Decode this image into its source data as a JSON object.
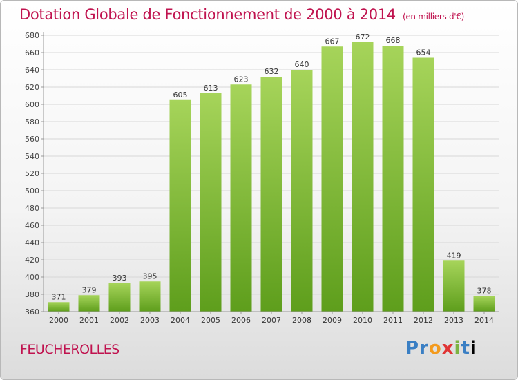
{
  "header": {
    "title": "Dotation Globale de Fonctionnement de 2000 à 2014",
    "unit": "(en milliers d'€)"
  },
  "footer": {
    "commune": "FEUCHEROLLES",
    "logo": "Proxiti"
  },
  "colors": {
    "title": "#c0134f",
    "bar_top": "#a6d45a",
    "bar_bottom": "#5e9e1c"
  },
  "chart_data": {
    "type": "bar",
    "title": "Dotation Globale de Fonctionnement de 2000 à 2014",
    "subtitle": "(en milliers d'€)",
    "xlabel": "",
    "ylabel": "",
    "categories": [
      "2000",
      "2001",
      "2002",
      "2003",
      "2004",
      "2005",
      "2006",
      "2007",
      "2008",
      "2009",
      "2010",
      "2011",
      "2012",
      "2013",
      "2014"
    ],
    "values": [
      371,
      379,
      393,
      395,
      605,
      613,
      623,
      632,
      640,
      667,
      672,
      668,
      654,
      419,
      378
    ],
    "ylim": [
      360,
      680
    ],
    "yticks": [
      360,
      380,
      400,
      420,
      440,
      460,
      480,
      500,
      520,
      540,
      560,
      580,
      600,
      620,
      640,
      660,
      680
    ],
    "grid": true,
    "legend": "none"
  }
}
